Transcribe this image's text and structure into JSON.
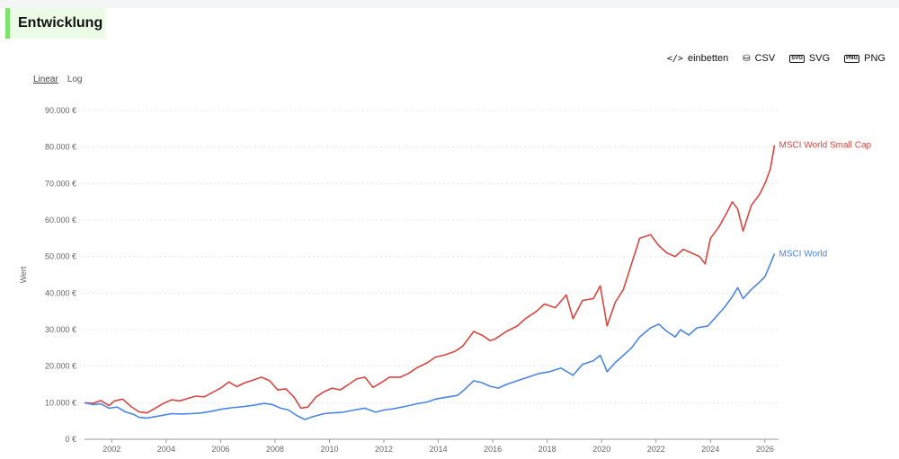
{
  "header": {
    "title": "Entwicklung"
  },
  "toolbar": {
    "embed": {
      "icon": "code-icon",
      "label": "einbetten"
    },
    "csv": {
      "icon": "database-download-icon",
      "label": "CSV"
    },
    "svg": {
      "icon": "svg-file-icon",
      "label": "SVG"
    },
    "png": {
      "icon": "png-file-icon",
      "label": "PNG"
    }
  },
  "scale": {
    "linear": "Linear",
    "log": "Log",
    "selected": "Linear"
  },
  "chart_data": {
    "type": "line",
    "ylabel": "Wert",
    "xlabel": "",
    "ylim": [
      0,
      90000
    ],
    "xlim": [
      2001.0,
      2026.5
    ],
    "y_ticks": [
      {
        "value": 0,
        "label": "0 €"
      },
      {
        "value": 10000,
        "label": "10.000 €"
      },
      {
        "value": 20000,
        "label": "20.000 €"
      },
      {
        "value": 30000,
        "label": "30.000 €"
      },
      {
        "value": 40000,
        "label": "40.000 €"
      },
      {
        "value": 50000,
        "label": "50.000 €"
      },
      {
        "value": 60000,
        "label": "60.000 €"
      },
      {
        "value": 70000,
        "label": "70.000 €"
      },
      {
        "value": 80000,
        "label": "80.000 €"
      },
      {
        "value": 90000,
        "label": "90.000 €"
      }
    ],
    "x_ticks": [
      "2002",
      "2004",
      "2006",
      "2008",
      "2010",
      "2012",
      "2014",
      "2016",
      "2018",
      "2020",
      "2022",
      "2024",
      "2026"
    ],
    "grid": "horizontal dashed",
    "legend": "end-of-line labels",
    "series": [
      {
        "name": "MSCI World Small Cap",
        "color": "#d9453f",
        "points": [
          [
            2001.0,
            10000
          ],
          [
            2001.3,
            9800
          ],
          [
            2001.6,
            10600
          ],
          [
            2001.9,
            9200
          ],
          [
            2002.1,
            10500
          ],
          [
            2002.4,
            11000
          ],
          [
            2002.7,
            9000
          ],
          [
            2003.0,
            7500
          ],
          [
            2003.3,
            7200
          ],
          [
            2003.6,
            8500
          ],
          [
            2003.9,
            9800
          ],
          [
            2004.2,
            10800
          ],
          [
            2004.5,
            10500
          ],
          [
            2004.8,
            11200
          ],
          [
            2005.1,
            11800
          ],
          [
            2005.4,
            11600
          ],
          [
            2005.7,
            12800
          ],
          [
            2006.0,
            14000
          ],
          [
            2006.3,
            15700
          ],
          [
            2006.6,
            14400
          ],
          [
            2006.9,
            15500
          ],
          [
            2007.2,
            16200
          ],
          [
            2007.5,
            17000
          ],
          [
            2007.8,
            16000
          ],
          [
            2008.1,
            13500
          ],
          [
            2008.4,
            13800
          ],
          [
            2008.7,
            11500
          ],
          [
            2008.95,
            8500
          ],
          [
            2009.2,
            8800
          ],
          [
            2009.5,
            11500
          ],
          [
            2009.8,
            13000
          ],
          [
            2010.1,
            14000
          ],
          [
            2010.4,
            13500
          ],
          [
            2010.7,
            15000
          ],
          [
            2011.0,
            16500
          ],
          [
            2011.3,
            17000
          ],
          [
            2011.6,
            14200
          ],
          [
            2011.9,
            15500
          ],
          [
            2012.2,
            17000
          ],
          [
            2012.6,
            17000
          ],
          [
            2012.9,
            18000
          ],
          [
            2013.2,
            19500
          ],
          [
            2013.6,
            21000
          ],
          [
            2013.9,
            22500
          ],
          [
            2014.2,
            23000
          ],
          [
            2014.6,
            24000
          ],
          [
            2014.9,
            25500
          ],
          [
            2015.3,
            29500
          ],
          [
            2015.6,
            28500
          ],
          [
            2015.9,
            27000
          ],
          [
            2016.1,
            27500
          ],
          [
            2016.5,
            29500
          ],
          [
            2016.9,
            31000
          ],
          [
            2017.2,
            33000
          ],
          [
            2017.6,
            35000
          ],
          [
            2017.9,
            37000
          ],
          [
            2018.3,
            36000
          ],
          [
            2018.7,
            39500
          ],
          [
            2018.95,
            33000
          ],
          [
            2019.3,
            38000
          ],
          [
            2019.7,
            38500
          ],
          [
            2019.95,
            42000
          ],
          [
            2020.2,
            31000
          ],
          [
            2020.5,
            37500
          ],
          [
            2020.8,
            41000
          ],
          [
            2021.1,
            48000
          ],
          [
            2021.4,
            55000
          ],
          [
            2021.8,
            56000
          ],
          [
            2022.1,
            53000
          ],
          [
            2022.4,
            51000
          ],
          [
            2022.7,
            50000
          ],
          [
            2023.0,
            52000
          ],
          [
            2023.3,
            51000
          ],
          [
            2023.6,
            50000
          ],
          [
            2023.8,
            48000
          ],
          [
            2024.0,
            55000
          ],
          [
            2024.3,
            58000
          ],
          [
            2024.6,
            62000
          ],
          [
            2024.8,
            65000
          ],
          [
            2025.0,
            63000
          ],
          [
            2025.2,
            57000
          ],
          [
            2025.5,
            64000
          ],
          [
            2025.8,
            67000
          ],
          [
            2026.0,
            70000
          ],
          [
            2026.2,
            74000
          ],
          [
            2026.35,
            80500
          ]
        ]
      },
      {
        "name": "MSCI World",
        "color": "#4a86e8",
        "points": [
          [
            2001.0,
            10000
          ],
          [
            2001.3,
            9500
          ],
          [
            2001.6,
            9700
          ],
          [
            2001.9,
            8500
          ],
          [
            2002.2,
            8800
          ],
          [
            2002.5,
            7500
          ],
          [
            2002.8,
            6800
          ],
          [
            2003.0,
            6000
          ],
          [
            2003.3,
            5800
          ],
          [
            2003.6,
            6200
          ],
          [
            2003.9,
            6600
          ],
          [
            2004.2,
            7000
          ],
          [
            2004.6,
            6900
          ],
          [
            2004.9,
            7000
          ],
          [
            2005.3,
            7200
          ],
          [
            2005.7,
            7700
          ],
          [
            2006.0,
            8200
          ],
          [
            2006.4,
            8600
          ],
          [
            2006.8,
            8900
          ],
          [
            2007.2,
            9300
          ],
          [
            2007.6,
            9800
          ],
          [
            2007.9,
            9500
          ],
          [
            2008.2,
            8500
          ],
          [
            2008.5,
            8000
          ],
          [
            2008.8,
            6500
          ],
          [
            2009.1,
            5400
          ],
          [
            2009.4,
            6200
          ],
          [
            2009.8,
            7000
          ],
          [
            2010.1,
            7200
          ],
          [
            2010.5,
            7400
          ],
          [
            2010.9,
            8000
          ],
          [
            2011.3,
            8500
          ],
          [
            2011.7,
            7400
          ],
          [
            2012.0,
            8000
          ],
          [
            2012.4,
            8400
          ],
          [
            2012.8,
            9000
          ],
          [
            2013.2,
            9700
          ],
          [
            2013.6,
            10200
          ],
          [
            2013.9,
            11000
          ],
          [
            2014.3,
            11500
          ],
          [
            2014.7,
            12000
          ],
          [
            2014.95,
            13500
          ],
          [
            2015.3,
            16000
          ],
          [
            2015.6,
            15500
          ],
          [
            2015.9,
            14500
          ],
          [
            2016.2,
            14000
          ],
          [
            2016.5,
            15000
          ],
          [
            2016.9,
            16000
          ],
          [
            2017.3,
            17000
          ],
          [
            2017.7,
            18000
          ],
          [
            2018.1,
            18500
          ],
          [
            2018.5,
            19500
          ],
          [
            2018.95,
            17500
          ],
          [
            2019.3,
            20500
          ],
          [
            2019.7,
            21500
          ],
          [
            2019.95,
            23000
          ],
          [
            2020.2,
            18500
          ],
          [
            2020.5,
            21000
          ],
          [
            2020.8,
            23000
          ],
          [
            2021.1,
            25000
          ],
          [
            2021.4,
            28000
          ],
          [
            2021.8,
            30500
          ],
          [
            2022.1,
            31500
          ],
          [
            2022.4,
            29500
          ],
          [
            2022.7,
            28000
          ],
          [
            2022.9,
            30000
          ],
          [
            2023.2,
            28500
          ],
          [
            2023.5,
            30500
          ],
          [
            2023.9,
            31000
          ],
          [
            2024.2,
            33500
          ],
          [
            2024.5,
            36000
          ],
          [
            2024.8,
            39000
          ],
          [
            2025.0,
            41500
          ],
          [
            2025.2,
            38500
          ],
          [
            2025.5,
            41000
          ],
          [
            2025.8,
            43000
          ],
          [
            2026.0,
            44500
          ],
          [
            2026.2,
            48000
          ],
          [
            2026.35,
            50800
          ]
        ]
      }
    ]
  }
}
